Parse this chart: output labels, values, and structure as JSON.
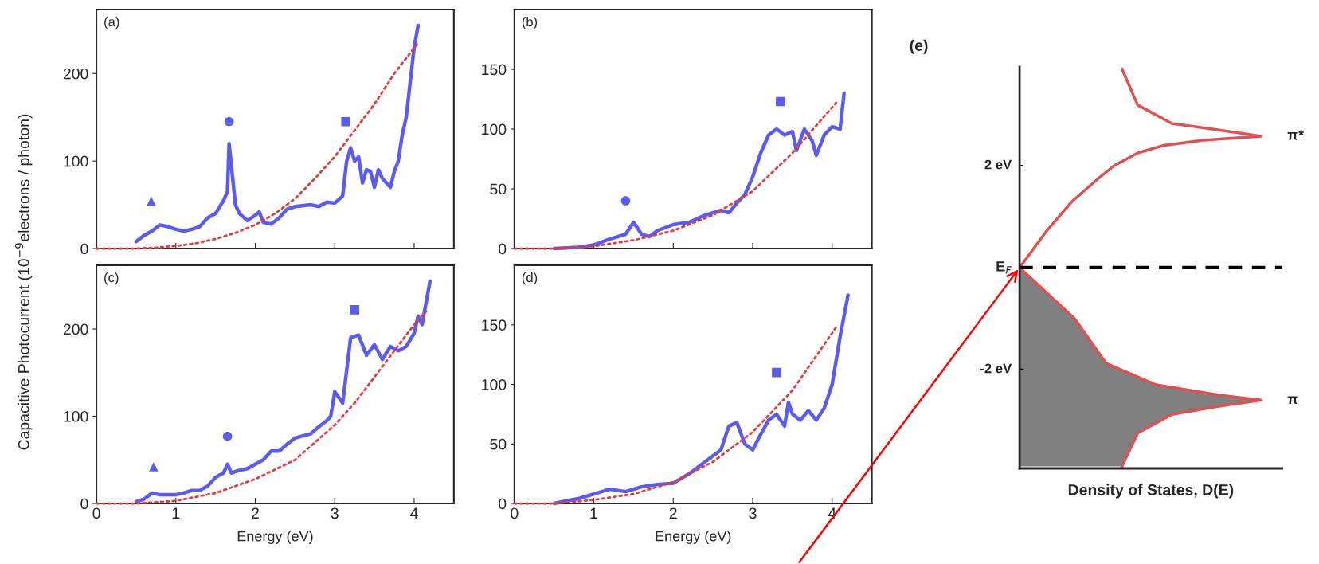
{
  "chart_data": [
    {
      "type": "line",
      "title": "(a)",
      "ylabel": "Capacitive Photocurrent (10$^{−9}$electrons / photon)",
      "xlim": [
        0,
        4.5
      ],
      "xticks": [
        0,
        1,
        2,
        3,
        4
      ],
      "ylim": [
        0,
        273
      ],
      "yticks": [
        0,
        100,
        200
      ],
      "tick_labels": "y",
      "series": [
        {
          "type": "line",
          "color": "#5b5bf0",
          "line_style": "solid",
          "x": [
            0.5,
            0.6,
            0.7,
            0.8,
            0.9,
            1.0,
            1.1,
            1.2,
            1.3,
            1.4,
            1.5,
            1.6,
            1.65,
            1.67,
            1.75,
            1.8,
            1.9,
            2.0,
            2.05,
            2.1,
            2.2,
            2.3,
            2.4,
            2.5,
            2.7,
            2.8,
            2.9,
            3.0,
            3.1,
            3.15,
            3.2,
            3.25,
            3.3,
            3.35,
            3.4,
            3.45,
            3.5,
            3.55,
            3.6,
            3.7,
            3.75,
            3.8,
            3.85,
            3.9,
            3.95,
            4.0,
            4.05
          ],
          "values": [
            8,
            15,
            20,
            27,
            25,
            22,
            20,
            22,
            25,
            35,
            40,
            55,
            65,
            120,
            50,
            40,
            32,
            38,
            42,
            30,
            28,
            35,
            45,
            48,
            50,
            48,
            53,
            52,
            60,
            100,
            115,
            100,
            105,
            75,
            90,
            88,
            70,
            90,
            80,
            70,
            88,
            100,
            130,
            150,
            190,
            230,
            255
          ]
        },
        {
          "type": "line",
          "color": "#e03c3c",
          "line_style": "dotted",
          "x": [
            0,
            0.5,
            0.75,
            1.0,
            1.25,
            1.5,
            1.75,
            2.0,
            2.25,
            2.5,
            2.75,
            3.0,
            3.25,
            3.5,
            3.75,
            4.05
          ],
          "values": [
            0,
            0,
            1,
            3,
            6,
            11,
            18,
            27,
            40,
            57,
            80,
            105,
            135,
            165,
            200,
            235
          ]
        },
        {
          "type": "scatter",
          "marker": "triangle",
          "color": "#5b5bf0",
          "x": [
            0.69
          ],
          "values": [
            54
          ]
        },
        {
          "type": "scatter",
          "marker": "circle",
          "color": "#5b5bf0",
          "x": [
            1.67
          ],
          "values": [
            145
          ]
        },
        {
          "type": "scatter",
          "marker": "square",
          "color": "#5b5bf0",
          "x": [
            3.14
          ],
          "values": [
            145
          ]
        }
      ]
    },
    {
      "type": "line",
      "title": "(b)",
      "xlim": [
        0,
        4.5
      ],
      "xticks": [
        0,
        1,
        2,
        3,
        4
      ],
      "ylim": [
        0,
        200
      ],
      "yticks": [
        0,
        50,
        100,
        150
      ],
      "tick_labels": "y",
      "series": [
        {
          "type": "line",
          "color": "#5b5bf0",
          "line_style": "solid",
          "x": [
            0.5,
            0.8,
            1.0,
            1.2,
            1.3,
            1.4,
            1.5,
            1.6,
            1.7,
            1.8,
            2.0,
            2.2,
            2.4,
            2.6,
            2.7,
            2.8,
            2.9,
            3.0,
            3.1,
            3.2,
            3.3,
            3.4,
            3.5,
            3.55,
            3.65,
            3.75,
            3.8,
            3.9,
            4.0,
            4.1,
            4.15
          ],
          "values": [
            0,
            1,
            3,
            8,
            10,
            12,
            22,
            12,
            10,
            15,
            20,
            22,
            28,
            32,
            30,
            38,
            45,
            60,
            80,
            95,
            100,
            95,
            98,
            82,
            100,
            90,
            78,
            95,
            102,
            100,
            130
          ]
        },
        {
          "type": "line",
          "color": "#e03c3c",
          "line_style": "dotted",
          "x": [
            0,
            0.5,
            1.0,
            1.5,
            2.0,
            2.5,
            3.0,
            3.5,
            4.05
          ],
          "values": [
            0,
            0,
            2,
            7,
            15,
            28,
            48,
            80,
            122
          ]
        },
        {
          "type": "scatter",
          "marker": "circle",
          "color": "#5b5bf0",
          "x": [
            1.4
          ],
          "values": [
            40
          ]
        },
        {
          "type": "scatter",
          "marker": "square",
          "color": "#5b5bf0",
          "x": [
            3.35
          ],
          "values": [
            123
          ]
        }
      ]
    },
    {
      "type": "line",
      "title": "(c)",
      "xlabel": "Energy (eV)",
      "xlim": [
        0,
        4.5
      ],
      "xticks": [
        0,
        1,
        2,
        3,
        4
      ],
      "ylim": [
        0,
        273
      ],
      "yticks": [
        0,
        100,
        200
      ],
      "series": [
        {
          "type": "line",
          "color": "#5b5bf0",
          "line_style": "solid",
          "x": [
            0.5,
            0.6,
            0.7,
            0.8,
            1.0,
            1.1,
            1.2,
            1.3,
            1.4,
            1.5,
            1.6,
            1.65,
            1.7,
            1.8,
            1.9,
            2.0,
            2.1,
            2.2,
            2.3,
            2.4,
            2.5,
            2.7,
            2.8,
            2.9,
            2.95,
            3.0,
            3.1,
            3.2,
            3.3,
            3.4,
            3.5,
            3.6,
            3.7,
            3.8,
            3.9,
            4.0,
            4.05,
            4.1,
            4.2
          ],
          "values": [
            2,
            5,
            12,
            10,
            10,
            12,
            15,
            15,
            20,
            30,
            35,
            45,
            35,
            38,
            40,
            45,
            50,
            60,
            60,
            68,
            75,
            80,
            88,
            95,
            100,
            128,
            115,
            190,
            193,
            170,
            182,
            165,
            180,
            175,
            180,
            195,
            215,
            205,
            255
          ]
        },
        {
          "type": "line",
          "color": "#e03c3c",
          "line_style": "dotted",
          "x": [
            0,
            0.5,
            1.0,
            1.5,
            2.0,
            2.5,
            3.0,
            3.25,
            3.5,
            4.0,
            4.15
          ],
          "values": [
            0,
            0,
            3,
            12,
            28,
            50,
            90,
            115,
            145,
            205,
            220
          ]
        },
        {
          "type": "scatter",
          "marker": "triangle",
          "color": "#5b5bf0",
          "x": [
            0.72
          ],
          "values": [
            42
          ]
        },
        {
          "type": "scatter",
          "marker": "circle",
          "color": "#5b5bf0",
          "x": [
            1.65
          ],
          "values": [
            77
          ]
        },
        {
          "type": "scatter",
          "marker": "square",
          "color": "#5b5bf0",
          "x": [
            3.25
          ],
          "values": [
            222
          ]
        }
      ]
    },
    {
      "type": "line",
      "title": "(d)",
      "xlabel": "Energy (eV)",
      "xlim": [
        0,
        4.5
      ],
      "xticks": [
        0,
        1,
        2,
        3,
        4
      ],
      "ylim": [
        0,
        200
      ],
      "yticks": [
        0,
        50,
        100,
        150
      ],
      "series": [
        {
          "type": "line",
          "color": "#5b5bf0",
          "line_style": "solid",
          "x": [
            0.5,
            0.8,
            1.0,
            1.2,
            1.4,
            1.6,
            1.8,
            2.0,
            2.2,
            2.4,
            2.6,
            2.7,
            2.8,
            2.9,
            3.0,
            3.1,
            3.2,
            3.3,
            3.4,
            3.45,
            3.5,
            3.6,
            3.7,
            3.8,
            3.9,
            4.0,
            4.1,
            4.2
          ],
          "values": [
            0,
            4,
            8,
            12,
            10,
            14,
            16,
            17,
            25,
            35,
            45,
            65,
            68,
            50,
            45,
            58,
            70,
            75,
            65,
            85,
            75,
            70,
            78,
            70,
            80,
            100,
            140,
            175
          ]
        },
        {
          "type": "line",
          "color": "#e03c3c",
          "line_style": "dotted",
          "x": [
            0,
            0.5,
            1.0,
            1.5,
            2.0,
            2.5,
            3.0,
            3.5,
            4.05
          ],
          "values": [
            0,
            0,
            3,
            8,
            18,
            35,
            60,
            95,
            148
          ]
        },
        {
          "type": "scatter",
          "marker": "square",
          "color": "#5b5bf0",
          "x": [
            3.3
          ],
          "values": [
            110
          ]
        }
      ]
    },
    {
      "type": "other",
      "title": "(e)",
      "xlabel": "Density of States, D(E)",
      "annotations": [
        "2 eV",
        "E$_{F}$",
        "-2 eV",
        "π*",
        "π"
      ]
    }
  ]
}
